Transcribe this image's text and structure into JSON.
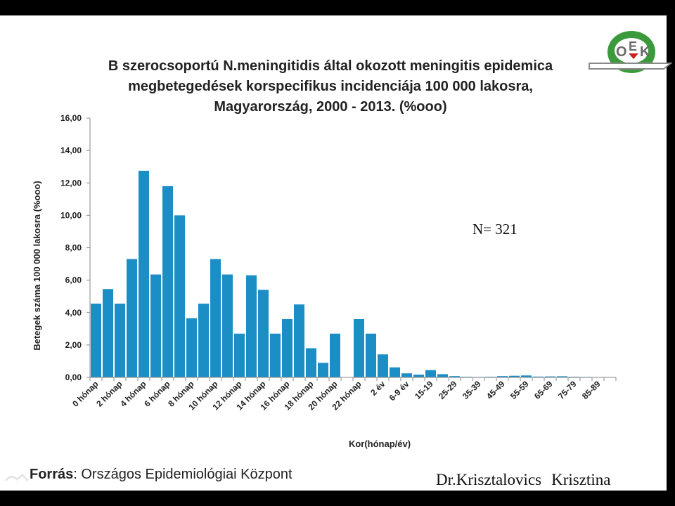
{
  "logo": {
    "text_o": "O",
    "text_e": "E",
    "text_k": "K",
    "colors": {
      "green": "#3b9a3b",
      "red": "#c82020",
      "gray": "#8a8a8a"
    }
  },
  "chart_data": {
    "type": "bar",
    "title_lines": [
      "B szerocsoportú N.meningitidis által okozott meningitis epidemica",
      "megbetegedések korspecifikus incidenciája 100 000 lakosra,",
      "Magyarország, 2000 - 2013. (%ooo)"
    ],
    "ylabel": "Betegek száma 100 000 lakosra (%ooo)",
    "xlabel": "Kor(hónap/év)",
    "ylim": [
      0,
      16
    ],
    "y_ticks": [
      "0,00",
      "2,00",
      "4,00",
      "6,00",
      "8,00",
      "10,00",
      "12,00",
      "14,00",
      "16,00"
    ],
    "x_tick_labels": [
      "0 hónap",
      "2 hónap",
      "4 hónap",
      "6 hónap",
      "8 hónap",
      "10 hónap",
      "12 hónap",
      "14 hónap",
      "16 hónap",
      "18 hónap",
      "20 hónap",
      "22 hónap",
      "2 év",
      "6-9 év",
      "15-19",
      "25-29",
      "35-39",
      "45-49",
      "55-59",
      "65-69",
      "75-79",
      "85-89"
    ],
    "values": [
      4.55,
      5.45,
      4.55,
      7.3,
      12.75,
      6.35,
      11.8,
      10.0,
      3.65,
      4.55,
      7.3,
      6.35,
      2.7,
      6.3,
      5.4,
      2.7,
      3.6,
      4.5,
      1.8,
      0.9,
      2.7,
      0,
      3.6,
      2.7,
      1.42,
      0.62,
      0.25,
      0.17,
      0.45,
      0.2,
      0.08,
      0.04,
      0.03,
      0.04,
      0.08,
      0.1,
      0.12,
      0.05,
      0.06,
      0.07,
      0.04,
      0.03,
      0.0,
      0.0
    ],
    "bar_color": "#1c8ec6",
    "grid": false,
    "annotation": "N= 321"
  },
  "footer": {
    "source_label": "Forrás",
    "source_text": ": Országos Epidemiológiai Központ",
    "author_first": "Dr.Krisztalovics",
    "author_last": "Krisztina"
  }
}
